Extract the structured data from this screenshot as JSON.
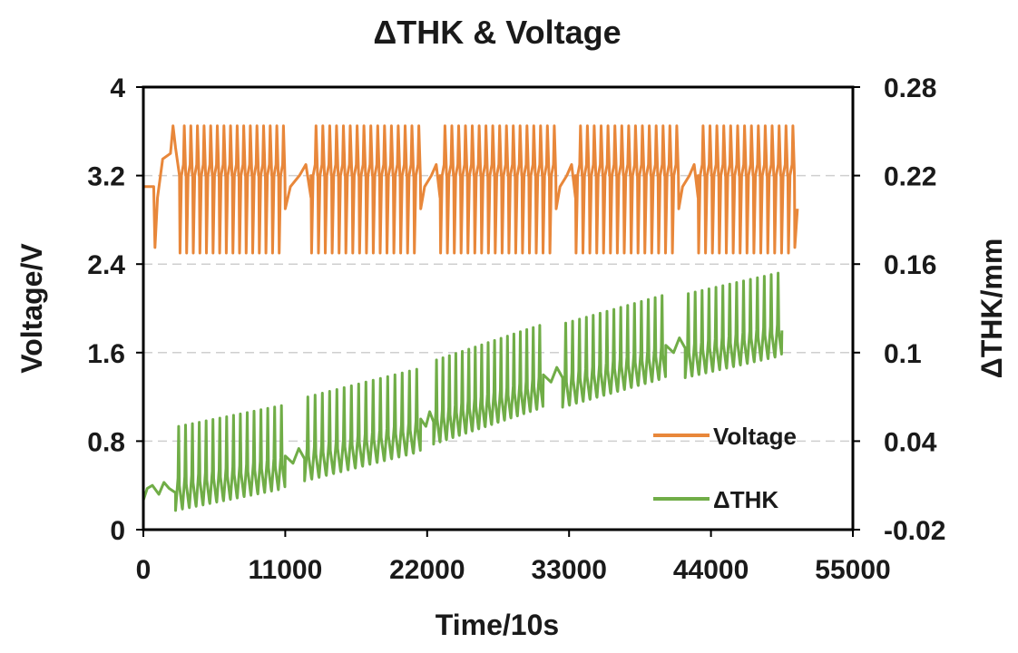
{
  "chart_data": {
    "type": "line",
    "title": "ΔTHK & Voltage",
    "xlabel": "Time/10s",
    "ylabel": "Voltage/V",
    "y2label": "ΔTHK/mm",
    "xlim": [
      0,
      55000
    ],
    "ylim": [
      0,
      4
    ],
    "y2lim": [
      -0.02,
      0.28
    ],
    "x_ticks": [
      "0",
      "11000",
      "22000",
      "33000",
      "44000",
      "55000"
    ],
    "y_ticks": [
      "0",
      "0.8",
      "1.6",
      "2.4",
      "3.2",
      "4"
    ],
    "y2_ticks": [
      "-0.02",
      "0.04",
      "0.1",
      "0.16",
      "0.22",
      "0.28"
    ],
    "grid": "horizontal dashed",
    "legend_position": "bottom-right inside",
    "colors": {
      "voltage": "#E8873A",
      "thk": "#70AD47",
      "axis": "#000000",
      "grid": "#cfcfcf"
    },
    "series": [
      {
        "name": "Voltage",
        "axis": "left",
        "color": "#E8873A",
        "segments": [
          {
            "x_start": 2800,
            "x_end": 11000,
            "cycles": 16,
            "high": 3.65,
            "low": 2.5,
            "plateau": 3.2,
            "rest": 3.2
          },
          {
            "x_start": 13000,
            "x_end": 21500,
            "cycles": 16,
            "high": 3.65,
            "low": 2.5,
            "plateau": 3.2,
            "rest": 3.25
          },
          {
            "x_start": 23000,
            "x_end": 32000,
            "cycles": 17,
            "high": 3.65,
            "low": 2.5,
            "plateau": 3.2,
            "rest": 3.25
          },
          {
            "x_start": 33500,
            "x_end": 41500,
            "cycles": 15,
            "high": 3.65,
            "low": 2.5,
            "plateau": 3.2,
            "rest": 3.25
          },
          {
            "x_start": 43000,
            "x_end": 50500,
            "cycles": 14,
            "high": 3.65,
            "low": 2.5,
            "plateau": 3.2,
            "rest": 3.2
          }
        ]
      },
      {
        "name": "ΔTHK",
        "axis": "right",
        "color": "#70AD47",
        "segments": [
          {
            "x_start": 2500,
            "x_end": 11000,
            "cycles": 16,
            "base_start": 0.005,
            "base_end": 0.02,
            "amp": 0.045
          },
          {
            "x_start": 12500,
            "x_end": 21500,
            "cycles": 16,
            "base_start": 0.025,
            "base_end": 0.045,
            "amp": 0.045
          },
          {
            "x_start": 22500,
            "x_end": 31000,
            "cycles": 17,
            "base_start": 0.05,
            "base_end": 0.075,
            "amp": 0.045
          },
          {
            "x_start": 32500,
            "x_end": 40500,
            "cycles": 15,
            "base_start": 0.075,
            "base_end": 0.095,
            "amp": 0.045
          },
          {
            "x_start": 42000,
            "x_end": 49500,
            "cycles": 14,
            "base_start": 0.095,
            "base_end": 0.11,
            "amp": 0.045
          }
        ]
      }
    ]
  }
}
